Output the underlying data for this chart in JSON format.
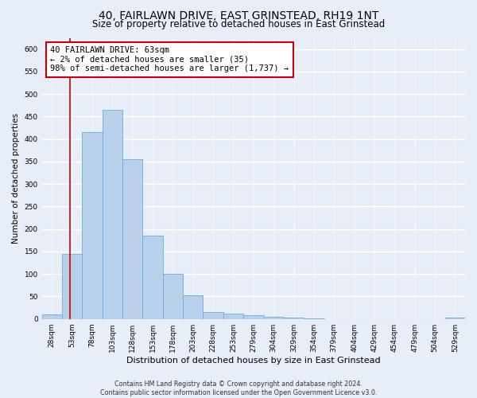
{
  "title_line1": "40, FAIRLAWN DRIVE, EAST GRINSTEAD, RH19 1NT",
  "title_line2": "Size of property relative to detached houses in East Grinstead",
  "xlabel": "Distribution of detached houses by size in East Grinstead",
  "ylabel": "Number of detached properties",
  "footnote": "Contains HM Land Registry data © Crown copyright and database right 2024.\nContains public sector information licensed under the Open Government Licence v3.0.",
  "bar_labels": [
    "28sqm",
    "53sqm",
    "78sqm",
    "103sqm",
    "128sqm",
    "153sqm",
    "178sqm",
    "203sqm",
    "228sqm",
    "253sqm",
    "279sqm",
    "304sqm",
    "329sqm",
    "354sqm",
    "379sqm",
    "404sqm",
    "429sqm",
    "454sqm",
    "479sqm",
    "504sqm",
    "529sqm"
  ],
  "bar_values": [
    10,
    145,
    415,
    465,
    355,
    185,
    100,
    52,
    15,
    12,
    8,
    5,
    3,
    2,
    0,
    0,
    0,
    0,
    0,
    0,
    3
  ],
  "bar_color": "#b8d0ea",
  "bar_edge_color": "#6aaed6",
  "vline_color": "#cc0000",
  "vline_pos": 1.4,
  "ylim": [
    0,
    625
  ],
  "yticks": [
    0,
    50,
    100,
    150,
    200,
    250,
    300,
    350,
    400,
    450,
    500,
    550,
    600
  ],
  "annotation_text": "40 FAIRLAWN DRIVE: 63sqm\n← 2% of detached houses are smaller (35)\n98% of semi-detached houses are larger (1,737) →",
  "annotation_box_facecolor": "#ffffff",
  "annotation_box_edgecolor": "#cc0000",
  "bg_color": "#e8eef8",
  "plot_bg_color": "#e8eef8",
  "title1_fontsize": 10,
  "title2_fontsize": 8.5,
  "xlabel_fontsize": 8,
  "ylabel_fontsize": 7.5,
  "tick_fontsize": 6.5,
  "annotation_fontsize": 7.5,
  "footnote_fontsize": 5.8,
  "grid_color": "#ffffff",
  "grid_linewidth": 1.0
}
